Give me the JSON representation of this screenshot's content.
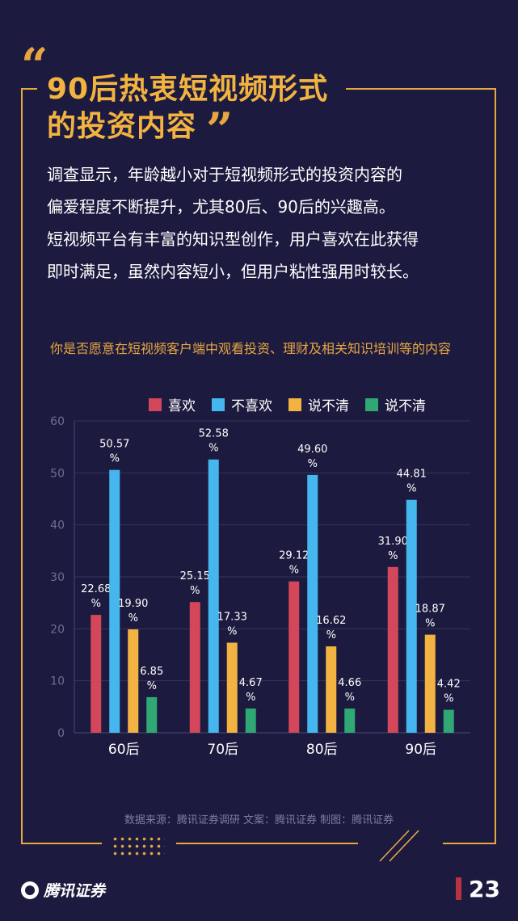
{
  "headline": {
    "line1": "90后热衷短视频形式",
    "line2": "的投资内容",
    "quote_open": "“",
    "quote_close": "”"
  },
  "intro": {
    "lines": [
      "调查显示，年龄越小对于短视频形式的投资内容的",
      "偏爱程度不断提升，尤其80后、90后的兴趣高。",
      "短视频平台有丰富的知识型创作，用户喜欢在此获得",
      "即时满足，虽然内容短小，但用户粘性强用时较长。"
    ]
  },
  "chart_question": "你是否愿意在短视频客户端中观看投资、理财及相关知识培训等的内容",
  "chart_data": {
    "type": "bar",
    "categories": [
      "60后",
      "70后",
      "80后",
      "90后"
    ],
    "series": [
      {
        "name": "喜欢",
        "color": "#d4475a",
        "values": [
          22.68,
          25.15,
          29.12,
          31.9
        ],
        "labels": [
          "22.68",
          "25.15",
          "29.12",
          "31.90"
        ]
      },
      {
        "name": "不喜欢",
        "color": "#46b7ee",
        "values": [
          50.57,
          52.58,
          49.6,
          44.81
        ],
        "labels": [
          "50.57",
          "52.58",
          "49.60",
          "44.81"
        ]
      },
      {
        "name": "说不清",
        "color": "#f2b342",
        "values": [
          19.9,
          17.33,
          16.62,
          18.87
        ],
        "labels": [
          "19.90",
          "17.33",
          "16.62",
          "18.87"
        ]
      },
      {
        "name": "说不清",
        "color": "#2fa874",
        "values": [
          6.85,
          4.67,
          4.66,
          4.42
        ],
        "labels": [
          "6.85",
          "4.67",
          "4.66",
          "4.42"
        ]
      }
    ],
    "label_unit": "%",
    "ylim": [
      0,
      60
    ],
    "yticks": [
      0,
      10,
      20,
      30,
      40,
      50,
      60
    ],
    "grid": true,
    "legend_position": "top-right"
  },
  "footer": {
    "source": "数据来源：腾讯证券调研    文案：腾讯证券    制图：腾讯证券"
  },
  "brand": {
    "name": "腾讯证券",
    "page_number": "23"
  },
  "colors": {
    "background": "#1c1b3f",
    "accent": "#e8a640"
  }
}
